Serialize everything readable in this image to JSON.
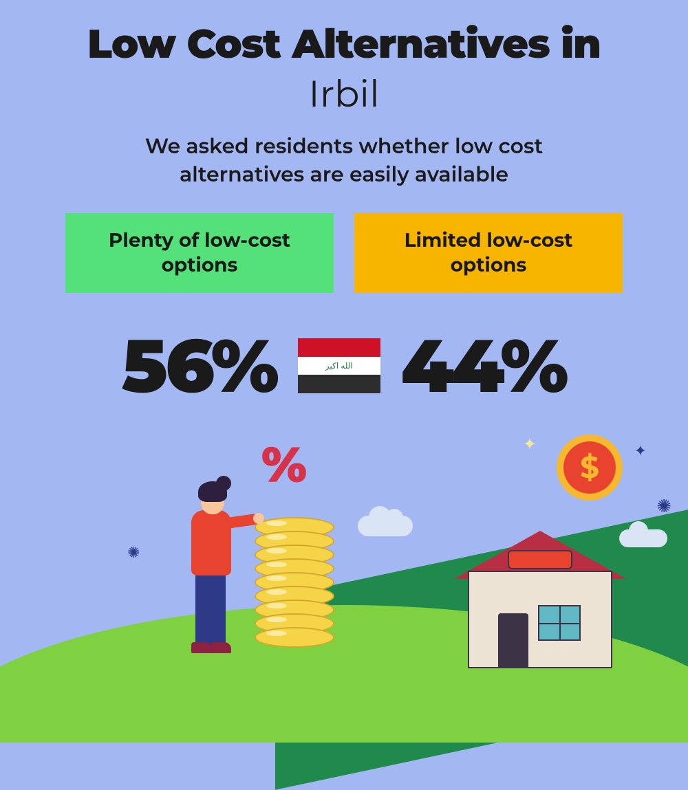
{
  "header": {
    "title_line1": "Low Cost Alternatives in",
    "title_line2": "Irbil",
    "subtitle": "We asked residents whether low cost alternatives are easily available"
  },
  "options": {
    "left": {
      "label": "Plenty of low-cost options",
      "background_color": "#55e17a",
      "value": "56%"
    },
    "right": {
      "label": "Limited low-cost options",
      "background_color": "#f7b500",
      "value": "44%"
    }
  },
  "flag": {
    "country": "Iraq",
    "stripe_colors": [
      "#ce1126",
      "#ffffff",
      "#2d2d2d"
    ],
    "script_text": "الله اكبر",
    "script_color": "#2d7a3d"
  },
  "styling": {
    "background_color": "#a3b8f2",
    "title_color": "#1a1a1a",
    "title_fontsize_line1": 58,
    "title_fontweight_line1": 900,
    "title_fontsize_line2": 54,
    "title_fontweight_line2": 400,
    "subtitle_fontsize": 30,
    "subtitle_fontweight": 600,
    "option_fontsize": 28,
    "option_fontweight": 700,
    "stat_fontsize": 108,
    "stat_fontweight": 900,
    "stat_color": "#1a1a1a"
  },
  "illustration": {
    "hill_back_color": "#1f8a4c",
    "hill_front_color": "#7fd142",
    "percent_symbol": "%",
    "percent_color": "#d6334a",
    "dollar_symbol": "$",
    "coin_color": "#f5d547",
    "coin_border": "#d4a82e",
    "coin_count": 9,
    "person": {
      "shirt_color": "#e8432e",
      "pants_color": "#2d3a87",
      "skin_color": "#f9c59b",
      "hair_color": "#2d1f3d",
      "shoe_color": "#8b2242"
    },
    "house": {
      "wall_color": "#ede3d4",
      "roof_color": "#b82e42",
      "slot_color": "#e8432e",
      "door_color": "#3d3347",
      "window_color": "#5fb8c4",
      "outline_color": "#3d3347"
    },
    "dollar_coin": {
      "outer_color": "#f5b82e",
      "inner_color": "#e8432e"
    },
    "cloud_color": "#d9e4f5",
    "sparkle_color": "#2d3a87",
    "star_color": "#f5e8a0"
  }
}
